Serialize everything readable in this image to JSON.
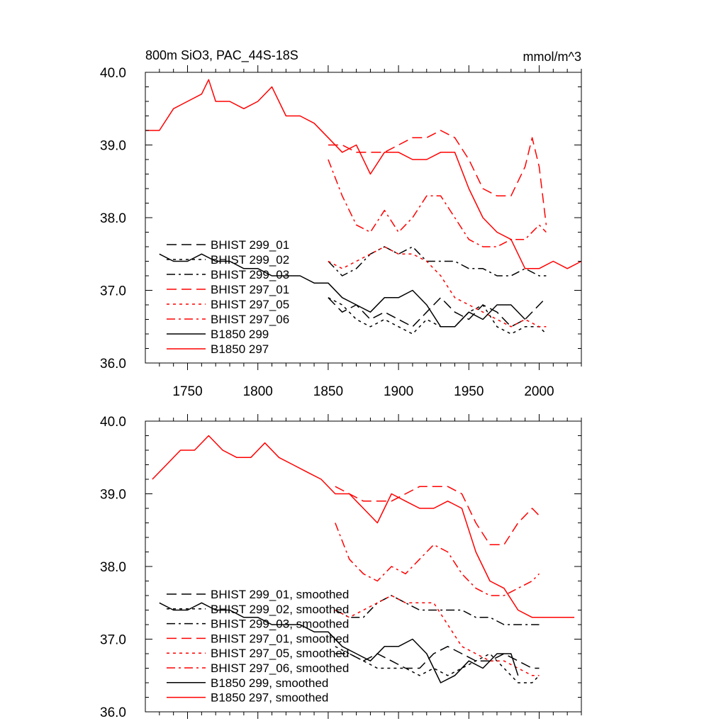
{
  "chart_data": [
    {
      "type": "line",
      "title": "800m SiO3, PAC_44S-18S",
      "units": "mmol/m^3",
      "xlim": [
        1720,
        2030
      ],
      "ylim": [
        36.0,
        40.0
      ],
      "xticks": [
        1750,
        1800,
        1850,
        1900,
        1950,
        2000
      ],
      "xtick_labels": [
        "1750",
        "1800",
        "1850",
        "1900",
        "1950",
        "2000"
      ],
      "yticks": [
        36.0,
        37.0,
        38.0,
        39.0,
        40.0
      ],
      "ytick_labels": [
        "36.0",
        "37.0",
        "38.0",
        "39.0",
        "40.0"
      ],
      "legend_position": "lower-left",
      "series": [
        {
          "name": "BHIST 299_01",
          "color": "#000000",
          "dash": "dashed",
          "x": [
            1850,
            1860,
            1870,
            1880,
            1890,
            1900,
            1910,
            1920,
            1930,
            1940,
            1950,
            1960,
            1970,
            1980,
            1990,
            2000,
            2005
          ],
          "y": [
            36.9,
            36.7,
            36.8,
            36.6,
            36.7,
            36.6,
            36.5,
            36.7,
            36.9,
            36.7,
            36.6,
            36.8,
            36.7,
            36.5,
            36.6,
            36.8,
            36.9
          ]
        },
        {
          "name": "BHIST 299_02",
          "color": "#000000",
          "dash": "dotted",
          "x": [
            1850,
            1860,
            1870,
            1880,
            1890,
            1900,
            1910,
            1920,
            1930,
            1940,
            1950,
            1960,
            1970,
            1980,
            1990,
            2000,
            2005
          ],
          "y": [
            36.9,
            36.8,
            36.6,
            36.5,
            36.6,
            36.5,
            36.4,
            36.6,
            36.5,
            36.5,
            36.7,
            36.8,
            36.5,
            36.4,
            36.5,
            36.5,
            36.4
          ]
        },
        {
          "name": "BHIST 299_03",
          "color": "#000000",
          "dash": "dashdot",
          "x": [
            1850,
            1860,
            1870,
            1880,
            1890,
            1900,
            1910,
            1920,
            1930,
            1940,
            1950,
            1960,
            1970,
            1980,
            1990,
            2000,
            2005
          ],
          "y": [
            37.4,
            37.2,
            37.3,
            37.5,
            37.6,
            37.5,
            37.6,
            37.4,
            37.4,
            37.4,
            37.3,
            37.3,
            37.2,
            37.2,
            37.3,
            37.2,
            37.2
          ]
        },
        {
          "name": "BHIST 297_01",
          "color": "#ff0000",
          "dash": "dashed",
          "x": [
            1850,
            1860,
            1870,
            1880,
            1890,
            1900,
            1910,
            1920,
            1930,
            1940,
            1950,
            1960,
            1970,
            1980,
            1990,
            1995,
            2000,
            2005
          ],
          "y": [
            39.0,
            39.0,
            38.9,
            38.9,
            38.9,
            39.0,
            39.1,
            39.1,
            39.2,
            39.1,
            38.8,
            38.4,
            38.3,
            38.3,
            38.7,
            39.1,
            38.7,
            37.9
          ]
        },
        {
          "name": "BHIST 297_05",
          "color": "#ff0000",
          "dash": "dotted",
          "x": [
            1850,
            1860,
            1870,
            1880,
            1890,
            1900,
            1910,
            1920,
            1930,
            1940,
            1950,
            1960,
            1970,
            1980,
            1990,
            2000,
            2005
          ],
          "y": [
            37.4,
            37.3,
            37.4,
            37.5,
            37.6,
            37.5,
            37.5,
            37.4,
            37.2,
            36.9,
            36.8,
            36.7,
            36.6,
            36.5,
            36.6,
            36.5,
            36.5
          ]
        },
        {
          "name": "BHIST 297_06",
          "color": "#ff0000",
          "dash": "dashdot",
          "x": [
            1850,
            1860,
            1870,
            1880,
            1890,
            1900,
            1910,
            1920,
            1930,
            1940,
            1950,
            1960,
            1970,
            1980,
            1990,
            2000,
            2005
          ],
          "y": [
            38.8,
            38.3,
            37.9,
            37.8,
            38.1,
            37.8,
            38.0,
            38.3,
            38.3,
            38.0,
            37.7,
            37.6,
            37.6,
            37.7,
            37.7,
            37.9,
            37.8
          ]
        },
        {
          "name": "B1850 299",
          "color": "#000000",
          "dash": "solid",
          "x": [
            1730,
            1740,
            1750,
            1760,
            1770,
            1780,
            1790,
            1800,
            1810,
            1820,
            1830,
            1840,
            1850,
            1860,
            1870,
            1880,
            1890,
            1900,
            1910,
            1920,
            1930,
            1940,
            1950,
            1960,
            1970,
            1980,
            1990
          ],
          "y": [
            37.5,
            37.4,
            37.4,
            37.5,
            37.4,
            37.4,
            37.3,
            37.3,
            37.2,
            37.2,
            37.2,
            37.1,
            37.1,
            36.9,
            36.8,
            36.7,
            36.9,
            36.9,
            37.0,
            36.8,
            36.5,
            36.5,
            36.7,
            36.6,
            36.8,
            36.8,
            36.6
          ]
        },
        {
          "name": "B1850 297",
          "color": "#ff0000",
          "dash": "solid",
          "x": [
            1720,
            1730,
            1740,
            1750,
            1760,
            1765,
            1770,
            1780,
            1790,
            1800,
            1810,
            1820,
            1830,
            1840,
            1850,
            1860,
            1870,
            1880,
            1890,
            1900,
            1910,
            1920,
            1930,
            1940,
            1950,
            1960,
            1970,
            1980,
            1990,
            2000,
            2010,
            2020,
            2030
          ],
          "y": [
            39.2,
            39.2,
            39.5,
            39.6,
            39.7,
            39.9,
            39.6,
            39.6,
            39.5,
            39.6,
            39.8,
            39.4,
            39.4,
            39.3,
            39.1,
            38.9,
            39.0,
            38.6,
            38.9,
            38.9,
            38.8,
            38.8,
            38.9,
            38.9,
            38.4,
            38.0,
            37.8,
            37.7,
            37.3,
            37.3,
            37.4,
            37.3,
            37.4
          ]
        }
      ]
    },
    {
      "type": "line",
      "xlim": [
        1720,
        2030
      ],
      "ylim": [
        36.0,
        40.0
      ],
      "yticks": [
        36.0,
        37.0,
        38.0,
        39.0,
        40.0
      ],
      "ytick_labels": [
        "36.0",
        "37.0",
        "38.0",
        "39.0",
        "40.0"
      ],
      "legend_position": "lower-left",
      "series": [
        {
          "name": "BHIST 299_01, smoothed",
          "color": "#000000",
          "dash": "dashed",
          "x": [
            1855,
            1865,
            1875,
            1885,
            1895,
            1905,
            1915,
            1925,
            1935,
            1945,
            1955,
            1965,
            1975,
            1985,
            1995,
            2000
          ],
          "y": [
            36.8,
            36.8,
            36.7,
            36.8,
            36.7,
            36.6,
            36.6,
            36.8,
            36.9,
            36.8,
            36.7,
            36.7,
            36.8,
            36.7,
            36.6,
            36.6
          ]
        },
        {
          "name": "BHIST 299_02, smoothed",
          "color": "#000000",
          "dash": "dotted",
          "x": [
            1855,
            1865,
            1875,
            1885,
            1895,
            1905,
            1915,
            1925,
            1935,
            1945,
            1955,
            1965,
            1975,
            1985,
            1995,
            2000
          ],
          "y": [
            36.9,
            36.8,
            36.7,
            36.6,
            36.6,
            36.6,
            36.5,
            36.6,
            36.5,
            36.6,
            36.7,
            36.8,
            36.6,
            36.4,
            36.4,
            36.5
          ]
        },
        {
          "name": "BHIST 299_03, smoothed",
          "color": "#000000",
          "dash": "dashdot",
          "x": [
            1855,
            1865,
            1875,
            1885,
            1895,
            1905,
            1915,
            1925,
            1935,
            1945,
            1955,
            1965,
            1975,
            1985,
            1995,
            2000
          ],
          "y": [
            37.4,
            37.3,
            37.3,
            37.5,
            37.6,
            37.5,
            37.4,
            37.4,
            37.4,
            37.4,
            37.3,
            37.3,
            37.2,
            37.2,
            37.2,
            37.2
          ]
        },
        {
          "name": "BHIST 297_01, smoothed",
          "color": "#ff0000",
          "dash": "dashed",
          "x": [
            1855,
            1865,
            1875,
            1885,
            1895,
            1905,
            1915,
            1925,
            1935,
            1945,
            1955,
            1965,
            1975,
            1985,
            1995,
            2000
          ],
          "y": [
            39.1,
            39.0,
            38.9,
            38.9,
            38.9,
            39.0,
            39.1,
            39.1,
            39.1,
            39.0,
            38.6,
            38.3,
            38.3,
            38.6,
            38.8,
            38.7
          ]
        },
        {
          "name": "BHIST 297_05, smoothed",
          "color": "#ff0000",
          "dash": "dotted",
          "x": [
            1855,
            1865,
            1875,
            1885,
            1895,
            1905,
            1915,
            1925,
            1935,
            1945,
            1955,
            1965,
            1975,
            1985,
            1995,
            2000
          ],
          "y": [
            37.4,
            37.3,
            37.4,
            37.5,
            37.6,
            37.5,
            37.5,
            37.5,
            37.2,
            36.9,
            36.8,
            36.7,
            36.7,
            36.6,
            36.5,
            36.5
          ]
        },
        {
          "name": "BHIST 297_06, smoothed",
          "color": "#ff0000",
          "dash": "dashdot",
          "x": [
            1855,
            1865,
            1875,
            1885,
            1895,
            1905,
            1915,
            1925,
            1935,
            1945,
            1955,
            1965,
            1975,
            1985,
            1995,
            2000
          ],
          "y": [
            38.6,
            38.1,
            37.9,
            37.8,
            38.0,
            37.9,
            38.1,
            38.3,
            38.2,
            37.9,
            37.7,
            37.6,
            37.6,
            37.7,
            37.8,
            37.9
          ]
        },
        {
          "name": "B1850 299, smoothed",
          "color": "#000000",
          "dash": "solid",
          "x": [
            1730,
            1740,
            1750,
            1760,
            1770,
            1780,
            1790,
            1800,
            1810,
            1820,
            1830,
            1840,
            1850,
            1860,
            1870,
            1880,
            1890,
            1900,
            1910,
            1920,
            1930,
            1940,
            1950,
            1960,
            1970,
            1980,
            1985
          ],
          "y": [
            37.5,
            37.4,
            37.4,
            37.5,
            37.4,
            37.4,
            37.3,
            37.3,
            37.2,
            37.2,
            37.2,
            37.1,
            37.1,
            36.9,
            36.8,
            36.7,
            36.9,
            36.9,
            37.0,
            36.8,
            36.4,
            36.5,
            36.7,
            36.6,
            36.8,
            36.8,
            36.5
          ]
        },
        {
          "name": "B1850 297, smoothed",
          "color": "#ff0000",
          "dash": "solid",
          "x": [
            1725,
            1735,
            1745,
            1755,
            1765,
            1775,
            1785,
            1795,
            1805,
            1815,
            1825,
            1835,
            1845,
            1855,
            1865,
            1875,
            1885,
            1895,
            1905,
            1915,
            1925,
            1935,
            1945,
            1955,
            1965,
            1975,
            1985,
            1995,
            2005,
            2015,
            2025
          ],
          "y": [
            39.2,
            39.4,
            39.6,
            39.6,
            39.8,
            39.6,
            39.5,
            39.5,
            39.7,
            39.5,
            39.4,
            39.3,
            39.2,
            39.0,
            39.0,
            38.8,
            38.6,
            39.0,
            38.9,
            38.8,
            38.8,
            38.9,
            38.8,
            38.2,
            37.8,
            37.7,
            37.4,
            37.3,
            37.3,
            37.3,
            37.3
          ]
        }
      ]
    }
  ]
}
